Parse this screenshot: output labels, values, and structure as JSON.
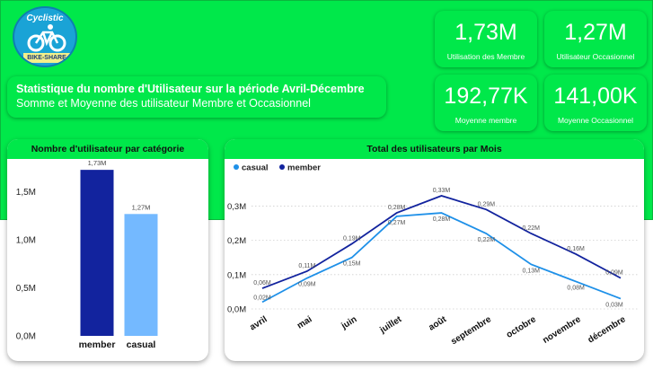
{
  "logo": {
    "text": "Cyclistic",
    "sub": "BIKE-SHARE",
    "icon": "bicycle-icon"
  },
  "title": {
    "main": "Statistique du nombre d'Utilisateur sur la période Avril-Décembre",
    "sub": "Somme et Moyenne des utilisateur Membre et Occasionnel"
  },
  "kpis": [
    {
      "value": "1,73M",
      "label": "Utilisation des Membre"
    },
    {
      "value": "1,27M",
      "label": "Utilisateur Occasionnel"
    },
    {
      "value": "192,77K",
      "label": "Moyenne membre"
    },
    {
      "value": "141,00K",
      "label": "Moyenne Occasionnel"
    }
  ],
  "chart_data": [
    {
      "type": "bar",
      "title": "Nombre d'utilisateur par catégorie",
      "categories": [
        "member",
        "casual"
      ],
      "values": [
        1.73,
        1.27
      ],
      "data_labels": [
        "1,73M",
        "1,27M"
      ],
      "colors": [
        "#12239e",
        "#74b9ff"
      ],
      "ylim": [
        0,
        1.75
      ],
      "yticks": [
        0,
        0.5,
        1.0,
        1.5
      ],
      "ytick_labels": [
        "0,0M",
        "0,5M",
        "1,0M",
        "1,5M"
      ],
      "unit": "M",
      "grid": false
    },
    {
      "type": "line",
      "title": "Total des utilisateurs par Mois",
      "categories": [
        "avril",
        "mai",
        "juin",
        "juillet",
        "août",
        "septembre",
        "octobre",
        "novembre",
        "décembre"
      ],
      "legend_position": "top-left",
      "series": [
        {
          "name": "casual",
          "color": "#1e90e8",
          "values": [
            0.02,
            0.09,
            0.15,
            0.27,
            0.28,
            0.22,
            0.13,
            0.08,
            0.03
          ],
          "labels": [
            "0,02M",
            "0,09M",
            "0,15M",
            "0,27M",
            "0,28M",
            "0,22M",
            "0,13M",
            "0,08M",
            "0,03M"
          ]
        },
        {
          "name": "member",
          "color": "#12239e",
          "values": [
            0.06,
            0.11,
            0.19,
            0.28,
            0.33,
            0.29,
            0.22,
            0.16,
            0.09
          ],
          "labels": [
            "0,06M",
            "0,11M",
            "0,19M",
            "0,28M",
            "0,33M",
            "0,29M",
            "0,22M",
            "0,16M",
            "0,09M"
          ]
        }
      ],
      "ylim": [
        0,
        0.33
      ],
      "yticks": [
        0,
        0.1,
        0.2,
        0.3
      ],
      "ytick_labels": [
        "0,0M",
        "0,1M",
        "0,2M",
        "0,3M"
      ],
      "grid": true
    }
  ]
}
